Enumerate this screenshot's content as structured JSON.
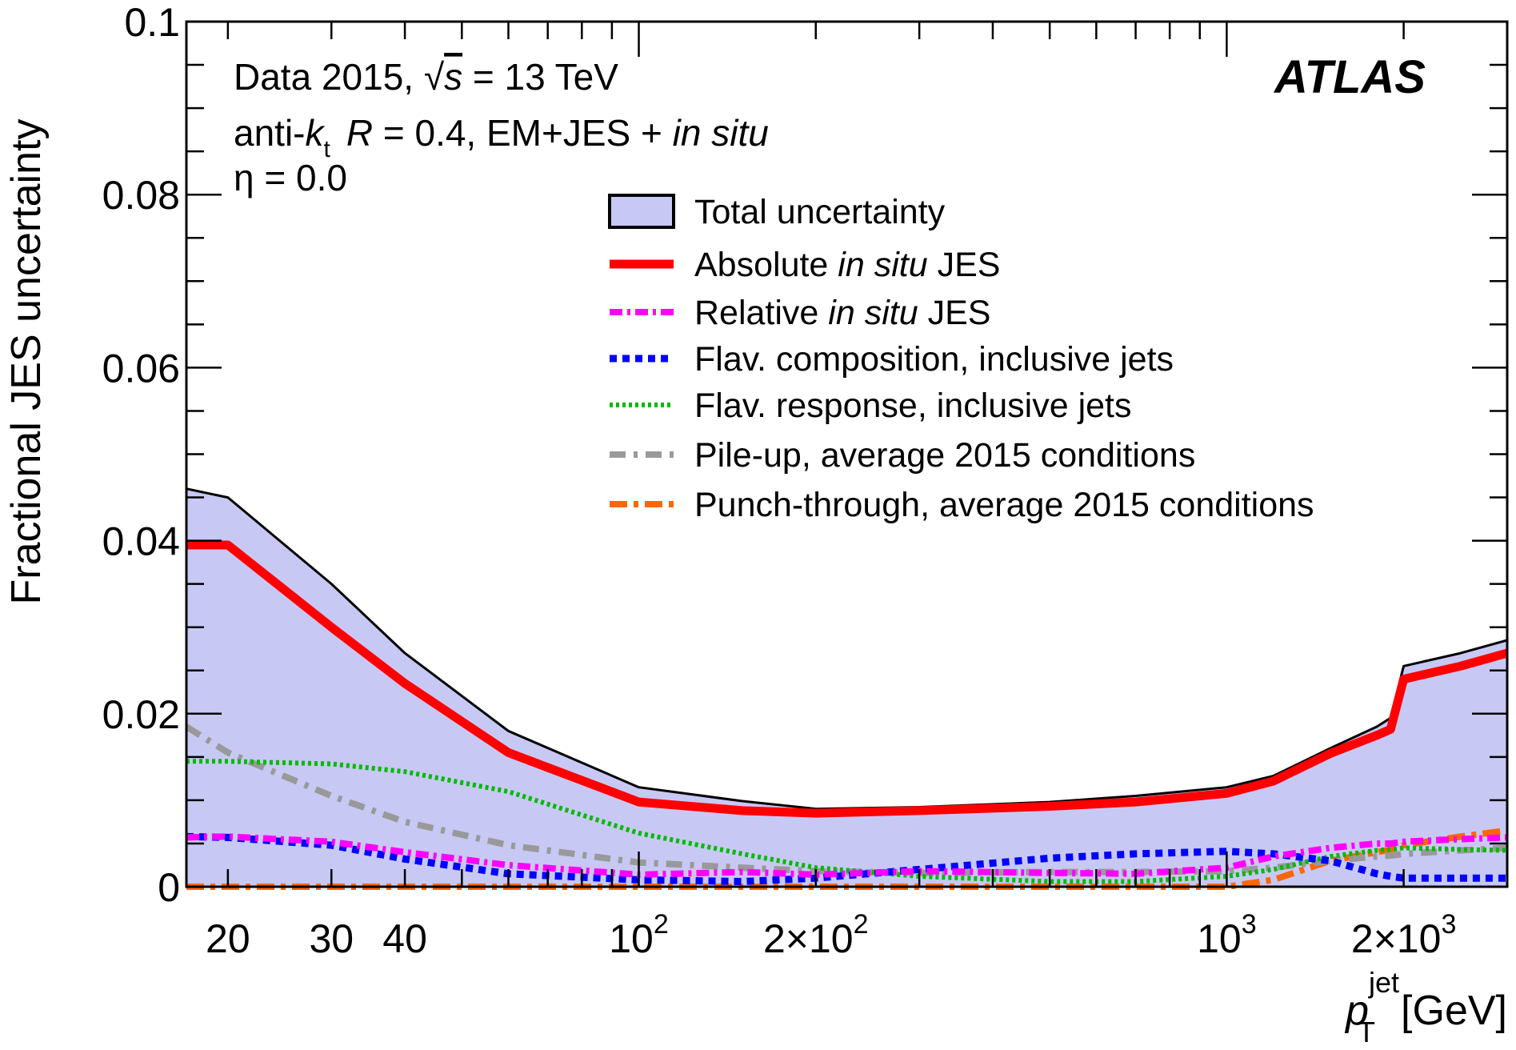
{
  "chart_data": {
    "type": "line",
    "ylabel": "Fractional JES uncertainty",
    "xlabel_var": "p",
    "xlabel_sub": "T",
    "xlabel_sup": "jet",
    "xlabel_unit": "[GeV]",
    "xscale": "log",
    "xlim": [
      17,
      3000
    ],
    "ylim": [
      0,
      0.1
    ],
    "yticks": [
      {
        "value": 0,
        "label": "0"
      },
      {
        "value": 0.02,
        "label": "0.02"
      },
      {
        "value": 0.04,
        "label": "0.04"
      },
      {
        "value": 0.06,
        "label": "0.06"
      },
      {
        "value": 0.08,
        "label": "0.08"
      },
      {
        "value": 0.1,
        "label": "0.1"
      }
    ],
    "xticklabels": [
      {
        "value": 20,
        "base": "20",
        "exp": ""
      },
      {
        "value": 30,
        "base": "30",
        "exp": ""
      },
      {
        "value": 40,
        "base": "40",
        "exp": ""
      },
      {
        "value": 100,
        "base": "10",
        "exp": "2"
      },
      {
        "value": 200,
        "base": "2×10",
        "exp": "2"
      },
      {
        "value": 1000,
        "base": "10",
        "exp": "3"
      },
      {
        "value": 2000,
        "base": "2×10",
        "exp": "3"
      }
    ],
    "x": [
      17,
      20,
      30,
      40,
      60,
      100,
      150,
      200,
      300,
      500,
      700,
      1000,
      1200,
      1500,
      1800,
      1900,
      2000,
      2500,
      3000
    ],
    "legend_position": "top-right",
    "series": [
      {
        "name": "Total uncertainty",
        "color": "#c8c8f5",
        "edge": "#000000",
        "values": [
          0.046,
          0.045,
          0.035,
          0.027,
          0.018,
          0.0115,
          0.0099,
          0.009,
          0.0092,
          0.0098,
          0.0105,
          0.0115,
          0.0128,
          0.016,
          0.0185,
          0.0195,
          0.0255,
          0.027,
          0.0285
        ]
      },
      {
        "name": "Absolute in situ JES",
        "color": "#ff0000",
        "values": [
          0.0395,
          0.0395,
          0.03,
          0.0235,
          0.0155,
          0.0098,
          0.0088,
          0.0085,
          0.0088,
          0.0093,
          0.0098,
          0.0108,
          0.0122,
          0.0154,
          0.0175,
          0.0182,
          0.024,
          0.0255,
          0.027
        ]
      },
      {
        "name": "Relative in situ JES",
        "color": "#ff00ff",
        "values": [
          0.0057,
          0.0058,
          0.0052,
          0.004,
          0.0025,
          0.0014,
          0.0017,
          0.0014,
          0.0018,
          0.0016,
          0.0015,
          0.0022,
          0.0035,
          0.0045,
          0.005,
          0.005,
          0.0052,
          0.0055,
          0.0057
        ]
      },
      {
        "name": "Flav. composition, inclusive jets",
        "color": "#0000ff",
        "values": [
          0.0058,
          0.0057,
          0.0048,
          0.0032,
          0.0015,
          0.0008,
          0.0006,
          0.001,
          0.002,
          0.0033,
          0.0038,
          0.0041,
          0.0038,
          0.003,
          0.0015,
          0.0012,
          0.001,
          0.001,
          0.001
        ]
      },
      {
        "name": "Flav. response, inclusive jets",
        "color": "#00bb00",
        "values": [
          0.0145,
          0.0145,
          0.0142,
          0.0133,
          0.011,
          0.0062,
          0.0038,
          0.0022,
          0.0012,
          0.0006,
          0.0006,
          0.0012,
          0.002,
          0.0035,
          0.0042,
          0.0043,
          0.0045,
          0.0043,
          0.0042
        ]
      },
      {
        "name": "Pile-up, average 2015 conditions",
        "color": "#999999",
        "values": [
          0.0185,
          0.0155,
          0.0105,
          0.0075,
          0.0048,
          0.0028,
          0.0022,
          0.0018,
          0.0016,
          0.0017,
          0.0017,
          0.0018,
          0.0022,
          0.003,
          0.0035,
          0.0036,
          0.0038,
          0.0042,
          0.0045
        ]
      },
      {
        "name": "Punch-through, average 2015 conditions",
        "color": "#ff6600",
        "values": [
          0.0,
          0.0,
          0.0,
          0.0,
          0.0,
          0.0,
          0.0,
          0.0,
          0.0,
          0.0,
          0.0,
          0.0,
          0.0008,
          0.003,
          0.004,
          0.0043,
          0.0048,
          0.0058,
          0.0065
        ]
      }
    ],
    "annotations": {
      "line1_pre": "Data 2015,",
      "line1_sqrt": "√",
      "line1_s": "s",
      "line1_post": "= 13 TeV",
      "line2_a": "anti-",
      "line2_k": "k",
      "line2_ksub": "t",
      "line2_R": "R",
      "line2_b": "= 0.4, EM+JES +",
      "line2_insitu": "in situ",
      "line3": "η = 0.0",
      "atlas": "ATLAS"
    },
    "legend_text": [
      {
        "plain": "Total uncertainty",
        "italic": "",
        "suffix": ""
      },
      {
        "plain": "Absolute ",
        "italic": "in situ",
        "suffix": " JES"
      },
      {
        "plain": "Relative ",
        "italic": "in situ",
        "suffix": " JES"
      },
      {
        "plain": "Flav. composition, inclusive jets",
        "italic": "",
        "suffix": ""
      },
      {
        "plain": "Flav. response, inclusive jets",
        "italic": "",
        "suffix": ""
      },
      {
        "plain": "Pile-up, average 2015 conditions",
        "italic": "",
        "suffix": ""
      },
      {
        "plain": "Punch-through, average 2015 conditions",
        "italic": "",
        "suffix": ""
      }
    ]
  }
}
